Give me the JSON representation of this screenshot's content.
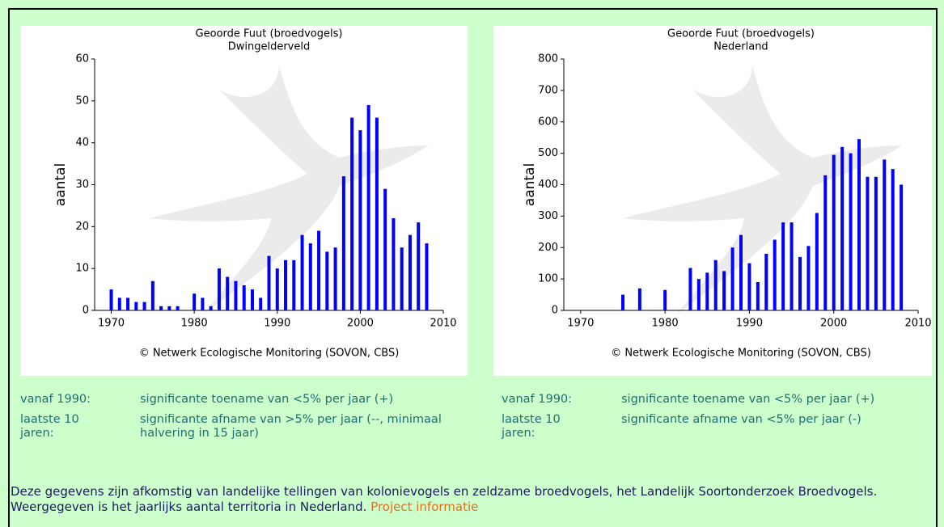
{
  "chart_data": [
    {
      "type": "bar",
      "title": "Geoorde Fuut (broedvogels)",
      "subtitle": "Dwingelderveld",
      "y_label": "aantal",
      "source": "© Netwerk Ecologische Monitoring (SOVON, CBS)",
      "color": "#0000ff",
      "x": [
        1970,
        1971,
        1972,
        1973,
        1974,
        1975,
        1976,
        1977,
        1978,
        1980,
        1981,
        1982,
        1983,
        1984,
        1985,
        1986,
        1987,
        1988,
        1989,
        1990,
        1991,
        1992,
        1993,
        1994,
        1995,
        1996,
        1997,
        1998,
        1999,
        2000,
        2001,
        2002,
        2003,
        2004,
        2005,
        2006,
        2007,
        2008
      ],
      "values": [
        5,
        3,
        3,
        2,
        2,
        7,
        1,
        1,
        1,
        4,
        3,
        1,
        10,
        8,
        7,
        6,
        5,
        3,
        13,
        10,
        12,
        12,
        18,
        16,
        19,
        14,
        15,
        32,
        46,
        43,
        49,
        46,
        29,
        22,
        15,
        18,
        21,
        16
      ],
      "xlim": [
        1968,
        2010
      ],
      "xticks": [
        1970,
        1980,
        1990,
        2000,
        2010
      ],
      "ylim": [
        0,
        60
      ],
      "yticks": [
        0,
        10,
        20,
        30,
        40,
        50,
        60
      ]
    },
    {
      "type": "bar",
      "title": "Geoorde Fuut (broedvogels)",
      "subtitle": "Nederland",
      "y_label": "aantal",
      "source": "© Netwerk Ecologische Monitoring (SOVON, CBS)",
      "color": "#0000ff",
      "x": [
        1975,
        1977,
        1980,
        1983,
        1984,
        1985,
        1986,
        1987,
        1988,
        1989,
        1990,
        1991,
        1992,
        1993,
        1994,
        1995,
        1996,
        1997,
        1998,
        1999,
        2000,
        2001,
        2002,
        2003,
        2004,
        2005,
        2006,
        2007,
        2008
      ],
      "values": [
        50,
        70,
        65,
        135,
        100,
        120,
        160,
        125,
        200,
        240,
        150,
        90,
        180,
        225,
        280,
        280,
        170,
        205,
        310,
        430,
        495,
        520,
        500,
        545,
        425,
        425,
        480,
        450,
        400
      ],
      "xlim": [
        1968,
        2010
      ],
      "xticks": [
        1970,
        1980,
        1990,
        2000,
        2010
      ],
      "ylim": [
        0,
        800
      ],
      "yticks": [
        0,
        100,
        200,
        300,
        400,
        500,
        600,
        700,
        800
      ]
    }
  ],
  "trends": [
    [
      [
        "vanaf 1990:",
        "significante toename van <5% per jaar (+)"
      ],
      [
        "laatste 10 jaren:",
        "significante afname van >5% per jaar (--, minimaal halvering in 15 jaar)"
      ]
    ],
    [
      [
        "vanaf 1990:",
        "significante toename van <5% per jaar (+)"
      ],
      [
        "laatste 10 jaren:",
        "significante afname van <5% per jaar (-)"
      ]
    ]
  ],
  "footer": {
    "text": "Deze gegevens zijn afkomstig van landelijke tellingen van kolonievogels en zeldzame broedvogels, het Landelijk Soortonderzoek Broedvogels. Weergegeven is het jaarlijks aantal territoria in Nederland.",
    "link": "Project informatie"
  }
}
